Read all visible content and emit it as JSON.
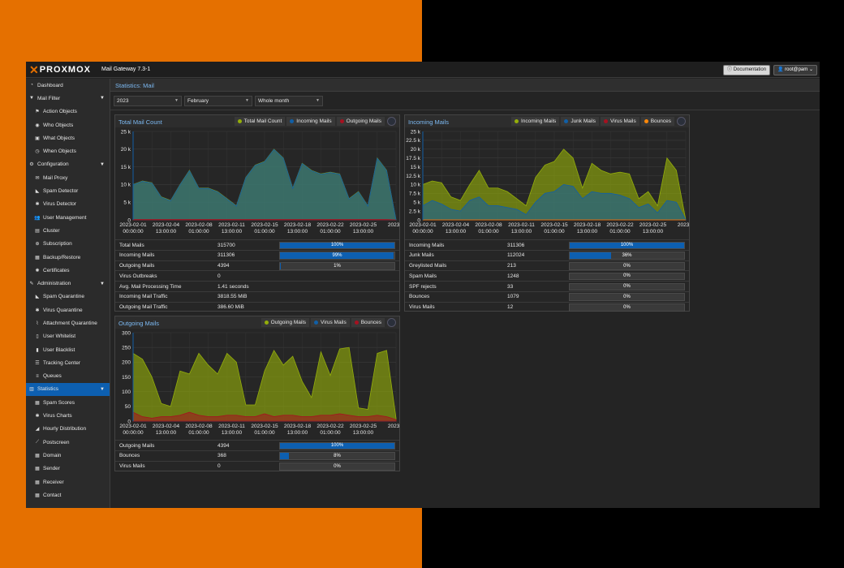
{
  "app": {
    "logo_text": "PROXMOX",
    "product": "Mail Gateway 7.3-1"
  },
  "header": {
    "doc_label": "Documentation",
    "user_label": "root@pam"
  },
  "nav": [
    {
      "label": "Dashboard",
      "icon": "dashboard-icon",
      "glyph": "◔",
      "level": 0
    },
    {
      "label": "Mail Filter",
      "icon": "filter-icon",
      "glyph": "▼",
      "level": 0,
      "expand": true
    },
    {
      "label": "Action Objects",
      "icon": "flag-icon",
      "glyph": "⚑",
      "level": 1
    },
    {
      "label": "Who Objects",
      "icon": "user-circle-icon",
      "glyph": "◉",
      "level": 1
    },
    {
      "label": "What Objects",
      "icon": "cube-icon",
      "glyph": "▣",
      "level": 1
    },
    {
      "label": "When Objects",
      "icon": "clock-icon",
      "glyph": "◷",
      "level": 1
    },
    {
      "label": "Configuration",
      "icon": "cogs-icon",
      "glyph": "⚙",
      "level": 0,
      "expand": true
    },
    {
      "label": "Mail Proxy",
      "icon": "envelope-icon",
      "glyph": "✉",
      "level": 1
    },
    {
      "label": "Spam Detector",
      "icon": "bullhorn-icon",
      "glyph": "◣",
      "level": 1
    },
    {
      "label": "Virus Detector",
      "icon": "bug-icon",
      "glyph": "✱",
      "level": 1
    },
    {
      "label": "User Management",
      "icon": "users-icon",
      "glyph": "👥",
      "level": 1
    },
    {
      "label": "Cluster",
      "icon": "server-icon",
      "glyph": "▤",
      "level": 1
    },
    {
      "label": "Subscription",
      "icon": "support-icon",
      "glyph": "⊕",
      "level": 1
    },
    {
      "label": "Backup/Restore",
      "icon": "floppy-icon",
      "glyph": "▦",
      "level": 1
    },
    {
      "label": "Certificates",
      "icon": "certificate-icon",
      "glyph": "✺",
      "level": 1
    },
    {
      "label": "Administration",
      "icon": "wrench-icon",
      "glyph": "✎",
      "level": 0,
      "expand": true
    },
    {
      "label": "Spam Quarantine",
      "icon": "bullhorn-icon",
      "glyph": "◣",
      "level": 1
    },
    {
      "label": "Virus Quarantine",
      "icon": "bug-icon",
      "glyph": "✱",
      "level": 1
    },
    {
      "label": "Attachment Quarantine",
      "icon": "paperclip-icon",
      "glyph": "⌇",
      "level": 1
    },
    {
      "label": "User Whitelist",
      "icon": "file-icon",
      "glyph": "▯",
      "level": 1
    },
    {
      "label": "User Blacklist",
      "icon": "file-icon",
      "glyph": "▮",
      "level": 1
    },
    {
      "label": "Tracking Center",
      "icon": "list-alt-icon",
      "glyph": "☰",
      "level": 1
    },
    {
      "label": "Queues",
      "icon": "bars-icon",
      "glyph": "≡",
      "level": 1
    },
    {
      "label": "Statistics",
      "icon": "bar-chart-icon",
      "glyph": "▥",
      "level": 0,
      "expand": true,
      "selected": true
    },
    {
      "label": "Spam Scores",
      "icon": "table-icon",
      "glyph": "▦",
      "level": 1
    },
    {
      "label": "Virus Charts",
      "icon": "bug-icon",
      "glyph": "✱",
      "level": 1
    },
    {
      "label": "Hourly Distribution",
      "icon": "area-chart-icon",
      "glyph": "◢",
      "level": 1
    },
    {
      "label": "Postscreen",
      "icon": "line-chart-icon",
      "glyph": "⟋",
      "level": 1
    },
    {
      "label": "Domain",
      "icon": "table-icon",
      "glyph": "▦",
      "level": 1
    },
    {
      "label": "Sender",
      "icon": "table-icon",
      "glyph": "▦",
      "level": 1
    },
    {
      "label": "Receiver",
      "icon": "table-icon",
      "glyph": "▦",
      "level": 1
    },
    {
      "label": "Contact",
      "icon": "table-icon",
      "glyph": "▦",
      "level": 1
    }
  ],
  "page": {
    "title": "Statistics: Mail"
  },
  "filters": {
    "year": "2023",
    "month": "February",
    "day": "Whole month"
  },
  "colors": {
    "green": "#94ae0a",
    "blue": "#115fa6",
    "red": "#a61120",
    "orange": "#ff8809"
  },
  "x_labels": [
    [
      "2023-02-01",
      "00:00:00"
    ],
    [
      "2023-02-04",
      "13:00:00"
    ],
    [
      "2023-02-08",
      "01:00:00"
    ],
    [
      "2023-02-11",
      "13:00:00"
    ],
    [
      "2023-02-15",
      "01:00:00"
    ],
    [
      "2023-02-18",
      "13:00:00"
    ],
    [
      "2023-02-22",
      "01:00:00"
    ],
    [
      "2023-02-25",
      "13:00:00"
    ],
    [
      "2023-0",
      ""
    ]
  ],
  "panels": {
    "total": {
      "title": "Total Mail Count",
      "legend": [
        {
          "label": "Total Mail Count",
          "color": "#94ae0a"
        },
        {
          "label": "Incoming Mails",
          "color": "#115fa6"
        },
        {
          "label": "Outgoing Mails",
          "color": "#a61120"
        }
      ],
      "stats": [
        {
          "name": "Total Mails",
          "value": "315700",
          "pct": 100,
          "bar": "100%"
        },
        {
          "name": "Incoming Mails",
          "value": "311306",
          "pct": 99,
          "bar": "99%"
        },
        {
          "name": "Outgoing Mails",
          "value": "4394",
          "pct": 1,
          "bar": "1%"
        },
        {
          "name": "Virus Outbreaks",
          "value": "0"
        },
        {
          "name": "Avg. Mail Processing Time",
          "value": "1.41 seconds"
        },
        {
          "name": "Incoming Mail Traffic",
          "value": "3818.55 MiB"
        },
        {
          "name": "Outgoing Mail Traffic",
          "value": "386.60 MiB"
        }
      ]
    },
    "incoming": {
      "title": "Incoming Mails",
      "legend": [
        {
          "label": "Incoming Mails",
          "color": "#94ae0a"
        },
        {
          "label": "Junk Mails",
          "color": "#115fa6"
        },
        {
          "label": "Virus Mails",
          "color": "#a61120"
        },
        {
          "label": "Bounces",
          "color": "#ff8809"
        }
      ],
      "stats": [
        {
          "name": "Incoming Mails",
          "value": "311306",
          "pct": 100,
          "bar": "100%"
        },
        {
          "name": "Junk Mails",
          "value": "112024",
          "pct": 36,
          "bar": "36%"
        },
        {
          "name": "Greylisted Mails",
          "value": "213",
          "pct": 0,
          "bar": "0%"
        },
        {
          "name": "Spam Mails",
          "value": "1248",
          "pct": 0,
          "bar": "0%"
        },
        {
          "name": "SPF rejects",
          "value": "33",
          "pct": 0,
          "bar": "0%"
        },
        {
          "name": "Bounces",
          "value": "1079",
          "pct": 0,
          "bar": "0%"
        },
        {
          "name": "Virus Mails",
          "value": "12",
          "pct": 0,
          "bar": "0%"
        }
      ]
    },
    "outgoing": {
      "title": "Outgoing Mails",
      "legend": [
        {
          "label": "Outgoing Mails",
          "color": "#94ae0a"
        },
        {
          "label": "Virus Mails",
          "color": "#115fa6"
        },
        {
          "label": "Bounces",
          "color": "#a61120"
        }
      ],
      "stats": [
        {
          "name": "Outgoing Mails",
          "value": "4394",
          "pct": 100,
          "bar": "100%"
        },
        {
          "name": "Bounces",
          "value": "368",
          "pct": 8,
          "bar": "8%"
        },
        {
          "name": "Virus Mails",
          "value": "0",
          "pct": 0,
          "bar": "0%"
        }
      ]
    }
  },
  "chart_data": [
    {
      "type": "area",
      "title": "Total Mail Count",
      "yticks": [
        "0",
        "5 k",
        "10 k",
        "15 k",
        "20 k",
        "25 k"
      ],
      "ylim": [
        0,
        25000
      ],
      "series": [
        {
          "name": "Total Mail Count",
          "values": [
            10000,
            11000,
            10500,
            6500,
            5500,
            10000,
            14000,
            9000,
            9000,
            8000,
            6000,
            4000,
            12000,
            15500,
            16500,
            20000,
            17500,
            9000,
            16000,
            14000,
            13000,
            13500,
            13000,
            6000,
            8000,
            4000,
            17500,
            14000,
            0
          ]
        },
        {
          "name": "Incoming Mails",
          "values": [
            9900,
            10900,
            10400,
            6400,
            5400,
            9900,
            13900,
            8900,
            8900,
            7900,
            5900,
            3900,
            11900,
            15400,
            16400,
            19900,
            17400,
            8900,
            15900,
            13900,
            12900,
            13400,
            12900,
            5900,
            7900,
            3900,
            17400,
            13900,
            0
          ]
        },
        {
          "name": "Outgoing Mails",
          "values": [
            100,
            100,
            100,
            100,
            100,
            100,
            100,
            100,
            100,
            100,
            100,
            100,
            100,
            100,
            100,
            100,
            100,
            100,
            100,
            100,
            100,
            100,
            100,
            100,
            100,
            100,
            100,
            100,
            0
          ]
        }
      ]
    },
    {
      "type": "area",
      "title": "Incoming Mails",
      "yticks": [
        "0",
        "2.5 k",
        "5 k",
        "7.5 k",
        "10 k",
        "12.5 k",
        "15 k",
        "17.5 k",
        "20 k",
        "22.5 k",
        "25 k"
      ],
      "ylim": [
        0,
        25000
      ],
      "series": [
        {
          "name": "Incoming Mails",
          "values": [
            10000,
            11000,
            10500,
            6500,
            5500,
            10000,
            14000,
            9000,
            9000,
            8000,
            6000,
            4000,
            12000,
            15500,
            16500,
            20000,
            17500,
            9000,
            16000,
            14000,
            13000,
            13500,
            13000,
            6000,
            8000,
            4000,
            17500,
            14000,
            0
          ]
        },
        {
          "name": "Junk Mails",
          "values": [
            4000,
            5500,
            4500,
            3000,
            2500,
            5500,
            6500,
            4000,
            4000,
            3500,
            3000,
            1500,
            5000,
            7500,
            8000,
            10000,
            9500,
            6000,
            8000,
            7500,
            7500,
            7000,
            6000,
            3500,
            4500,
            2000,
            5500,
            5000,
            0
          ]
        },
        {
          "name": "Virus Mails",
          "values": [
            0,
            0,
            0,
            0,
            0,
            0,
            0,
            0,
            0,
            0,
            0,
            0,
            0,
            0,
            0,
            0,
            0,
            0,
            0,
            0,
            0,
            0,
            0,
            0,
            0,
            0,
            0,
            0,
            0
          ]
        },
        {
          "name": "Bounces",
          "values": [
            0,
            0,
            0,
            0,
            0,
            0,
            0,
            0,
            0,
            0,
            0,
            0,
            0,
            0,
            0,
            0,
            0,
            0,
            0,
            0,
            0,
            0,
            0,
            0,
            0,
            0,
            0,
            0,
            0
          ]
        }
      ]
    },
    {
      "type": "area",
      "title": "Outgoing Mails",
      "yticks": [
        "0",
        "50",
        "100",
        "150",
        "200",
        "250",
        "300"
      ],
      "ylim": [
        0,
        300
      ],
      "series": [
        {
          "name": "Outgoing Mails",
          "values": [
            230,
            210,
            150,
            60,
            50,
            170,
            160,
            230,
            190,
            160,
            230,
            200,
            55,
            55,
            170,
            240,
            190,
            220,
            135,
            80,
            235,
            155,
            245,
            250,
            45,
            40,
            230,
            240,
            10
          ]
        },
        {
          "name": "Virus Mails",
          "values": [
            0,
            0,
            0,
            0,
            0,
            0,
            0,
            0,
            0,
            0,
            0,
            0,
            0,
            0,
            0,
            0,
            0,
            0,
            0,
            0,
            0,
            0,
            0,
            0,
            0,
            0,
            0,
            0,
            0
          ]
        },
        {
          "name": "Bounces",
          "values": [
            30,
            15,
            10,
            15,
            15,
            20,
            30,
            20,
            15,
            15,
            20,
            20,
            15,
            15,
            25,
            15,
            20,
            20,
            15,
            15,
            20,
            20,
            25,
            20,
            15,
            15,
            20,
            15,
            5
          ]
        }
      ]
    }
  ]
}
